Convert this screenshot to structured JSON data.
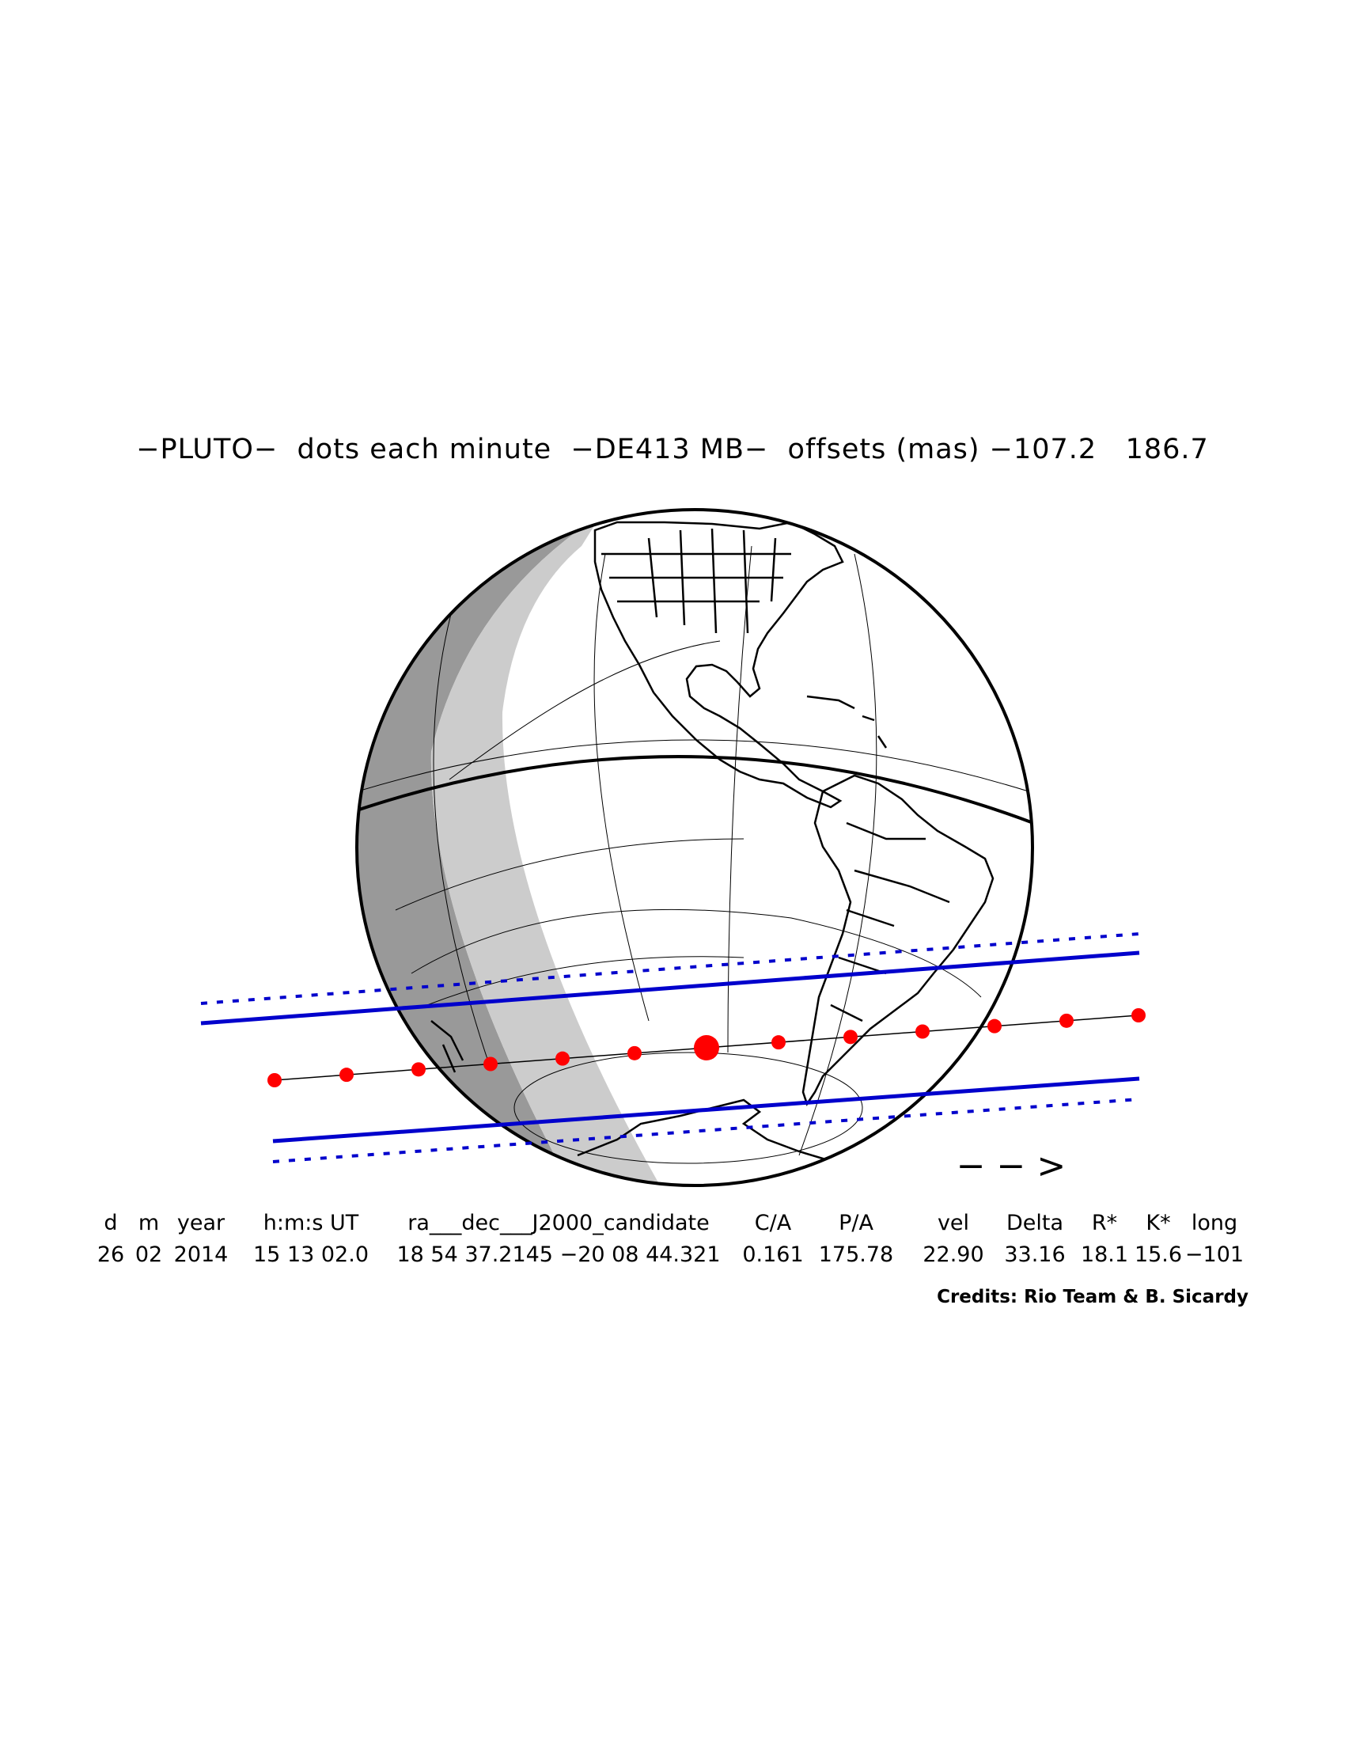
{
  "title": "−PLUTO−  dots each minute  −DE413 MB−  offsets (mas) −107.2   186.7",
  "arrow": "− − >",
  "table": {
    "headers": [
      "d",
      "m",
      "year",
      "h:m:s UT",
      "ra___dec___J2000_candidate",
      "C/A",
      "P/A",
      "vel",
      "Delta",
      "R*",
      "K*",
      "long"
    ],
    "values": [
      "26",
      "02",
      "2014",
      "15 13 02.0",
      "18 54 37.2145 −20 08 44.321",
      "0.161",
      "175.78",
      "22.90",
      "33.16",
      "18.1",
      "15.6",
      "−101"
    ]
  },
  "credits": "Credits: Rio Team & B. Sicardy",
  "colors": {
    "path_dots": "#ff0000",
    "shadow_lines": "#0000cc",
    "night": "#999999",
    "twilight": "#cccccc"
  },
  "icons": [
    "globe-icon"
  ],
  "path_minutes": 13,
  "closest_minute_index": 6
}
